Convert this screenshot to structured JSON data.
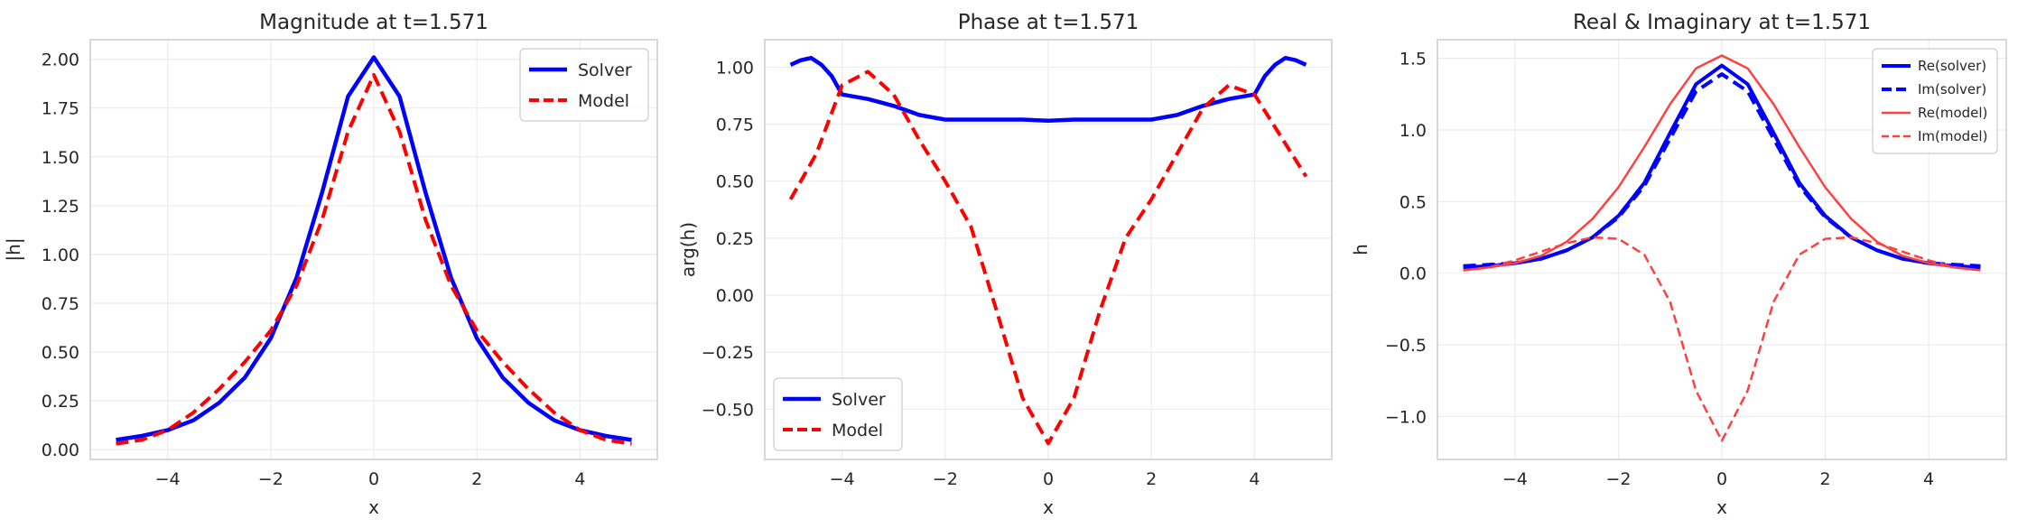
{
  "figure": {
    "background": "#ffffff"
  },
  "chart_data": [
    {
      "type": "line",
      "title": "Magnitude at t=1.571",
      "xlabel": "x",
      "ylabel": "|h|",
      "xlim": [
        -5.5,
        5.5
      ],
      "ylim": [
        -0.05,
        2.1
      ],
      "xticks": [
        -4,
        -2,
        0,
        2,
        4
      ],
      "xtick_labels": [
        "−4",
        "−2",
        "0",
        "2",
        "4"
      ],
      "yticks": [
        0,
        0.25,
        0.5,
        0.75,
        1.0,
        1.25,
        1.5,
        1.75,
        2.0
      ],
      "ytick_labels": [
        "0.00",
        "0.25",
        "0.50",
        "0.75",
        "1.00",
        "1.25",
        "1.50",
        "1.75",
        "2.00"
      ],
      "grid": true,
      "legend": "top-right",
      "series": [
        {
          "name": "Solver",
          "color": "#0000ff",
          "style": "solid",
          "width": 4.5,
          "x": [
            -5,
            -4.5,
            -4,
            -3.5,
            -3,
            -2.5,
            -2,
            -1.5,
            -1,
            -0.5,
            0,
            0.5,
            1,
            1.5,
            2,
            2.5,
            3,
            3.5,
            4,
            4.5,
            5
          ],
          "y": [
            0.05,
            0.07,
            0.1,
            0.15,
            0.24,
            0.37,
            0.57,
            0.88,
            1.32,
            1.81,
            2.01,
            1.81,
            1.32,
            0.88,
            0.57,
            0.37,
            0.24,
            0.15,
            0.1,
            0.07,
            0.05
          ]
        },
        {
          "name": "Model",
          "color": "#ff0000",
          "style": "dashed",
          "width": 4,
          "x": [
            -5,
            -4.5,
            -4,
            -3.5,
            -3,
            -2.5,
            -2,
            -1.5,
            -1,
            -0.5,
            0,
            0.5,
            1,
            1.5,
            2,
            2.5,
            3,
            3.5,
            4,
            4.5,
            5
          ],
          "y": [
            0.03,
            0.05,
            0.1,
            0.19,
            0.31,
            0.45,
            0.61,
            0.84,
            1.18,
            1.63,
            1.92,
            1.63,
            1.18,
            0.84,
            0.61,
            0.45,
            0.31,
            0.19,
            0.1,
            0.05,
            0.03
          ]
        }
      ]
    },
    {
      "type": "line",
      "title": "Phase at t=1.571",
      "xlabel": "x",
      "ylabel": "arg(h)",
      "xlim": [
        -5.5,
        5.5
      ],
      "ylim": [
        -0.72,
        1.12
      ],
      "xticks": [
        -4,
        -2,
        0,
        2,
        4
      ],
      "xtick_labels": [
        "−4",
        "−2",
        "0",
        "2",
        "4"
      ],
      "yticks": [
        -0.5,
        -0.25,
        0,
        0.25,
        0.5,
        0.75,
        1.0
      ],
      "ytick_labels": [
        "−0.50",
        "−0.25",
        "0.00",
        "0.25",
        "0.50",
        "0.75",
        "1.00"
      ],
      "grid": true,
      "legend": "bottom-left",
      "series": [
        {
          "name": "Solver",
          "color": "#0000ff",
          "style": "solid",
          "width": 4.5,
          "x": [
            -5,
            -4.8,
            -4.6,
            -4.4,
            -4.2,
            -4,
            -3.5,
            -3,
            -2.5,
            -2,
            -1.5,
            -1,
            -0.5,
            0,
            0.5,
            1,
            1.5,
            2,
            2.5,
            3,
            3.5,
            4,
            4.2,
            4.4,
            4.6,
            4.8,
            5
          ],
          "y": [
            1.01,
            1.03,
            1.04,
            1.01,
            0.96,
            0.88,
            0.86,
            0.83,
            0.79,
            0.77,
            0.77,
            0.77,
            0.77,
            0.765,
            0.77,
            0.77,
            0.77,
            0.77,
            0.79,
            0.83,
            0.86,
            0.88,
            0.96,
            1.01,
            1.04,
            1.03,
            1.01
          ]
        },
        {
          "name": "Model",
          "color": "#ff0000",
          "style": "dashed",
          "width": 4,
          "x": [
            -5,
            -4.5,
            -4,
            -3.5,
            -3,
            -2.5,
            -2,
            -1.5,
            -1,
            -0.5,
            0,
            0.5,
            1,
            1.5,
            2,
            2.5,
            3,
            3.5,
            4,
            4.5,
            5
          ],
          "y": [
            0.42,
            0.62,
            0.92,
            0.98,
            0.88,
            0.68,
            0.5,
            0.3,
            -0.07,
            -0.45,
            -0.65,
            -0.45,
            -0.07,
            0.25,
            0.42,
            0.62,
            0.82,
            0.92,
            0.88,
            0.7,
            0.52
          ]
        }
      ]
    },
    {
      "type": "line",
      "title": "Real & Imaginary at t=1.571",
      "xlabel": "x",
      "ylabel": "h",
      "xlim": [
        -5.5,
        5.5
      ],
      "ylim": [
        -1.3,
        1.63
      ],
      "xticks": [
        -4,
        -2,
        0,
        2,
        4
      ],
      "xtick_labels": [
        "−4",
        "−2",
        "0",
        "2",
        "4"
      ],
      "yticks": [
        -1.0,
        -0.5,
        0,
        0.5,
        1.0,
        1.5
      ],
      "ytick_labels": [
        "−1.0",
        "−0.5",
        "0.0",
        "0.5",
        "1.0",
        "1.5"
      ],
      "grid": true,
      "legend": "top-right",
      "series": [
        {
          "name": "Re(solver)",
          "color": "#0000ff",
          "style": "solid",
          "width": 4,
          "x": [
            -5,
            -4.5,
            -4,
            -3.5,
            -3,
            -2.5,
            -2,
            -1.5,
            -1,
            -0.5,
            0,
            0.5,
            1,
            1.5,
            2,
            2.5,
            3,
            3.5,
            4,
            4.5,
            5
          ],
          "y": [
            0.04,
            0.05,
            0.07,
            0.1,
            0.16,
            0.25,
            0.4,
            0.63,
            0.98,
            1.32,
            1.45,
            1.32,
            0.98,
            0.63,
            0.4,
            0.25,
            0.16,
            0.1,
            0.07,
            0.05,
            0.04
          ]
        },
        {
          "name": "Im(solver)",
          "color": "#0000ff",
          "style": "dashed",
          "width": 4,
          "x": [
            -5,
            -4.5,
            -4,
            -3.5,
            -3,
            -2.5,
            -2,
            -1.5,
            -1,
            -0.5,
            0,
            0.5,
            1,
            1.5,
            2,
            2.5,
            3,
            3.5,
            4,
            4.5,
            5
          ],
          "y": [
            0.05,
            0.06,
            0.07,
            0.1,
            0.16,
            0.25,
            0.39,
            0.61,
            0.94,
            1.27,
            1.39,
            1.27,
            0.94,
            0.61,
            0.39,
            0.25,
            0.16,
            0.1,
            0.07,
            0.06,
            0.05
          ]
        },
        {
          "name": "Re(model)",
          "color": "#ff4040",
          "style": "solid",
          "width": 2.5,
          "x": [
            -5,
            -4.5,
            -4,
            -3.5,
            -3,
            -2.5,
            -2,
            -1.5,
            -1,
            -0.5,
            0,
            0.5,
            1,
            1.5,
            2,
            2.5,
            3,
            3.5,
            4,
            4.5,
            5
          ],
          "y": [
            0.02,
            0.04,
            0.07,
            0.12,
            0.22,
            0.38,
            0.6,
            0.88,
            1.18,
            1.43,
            1.52,
            1.43,
            1.18,
            0.88,
            0.6,
            0.38,
            0.22,
            0.12,
            0.07,
            0.04,
            0.02
          ]
        },
        {
          "name": "Im(model)",
          "color": "#ff4040",
          "style": "dashed",
          "width": 2.5,
          "x": [
            -5,
            -4.5,
            -4,
            -3.5,
            -3,
            -2.5,
            -2,
            -1.5,
            -1,
            -0.5,
            0,
            0.5,
            1,
            1.5,
            2,
            2.5,
            3,
            3.5,
            4,
            4.5,
            5
          ],
          "y": [
            0.02,
            0.04,
            0.09,
            0.15,
            0.21,
            0.25,
            0.24,
            0.13,
            -0.2,
            -0.82,
            -1.17,
            -0.82,
            -0.2,
            0.13,
            0.24,
            0.25,
            0.21,
            0.15,
            0.09,
            0.04,
            0.02
          ]
        }
      ]
    }
  ]
}
